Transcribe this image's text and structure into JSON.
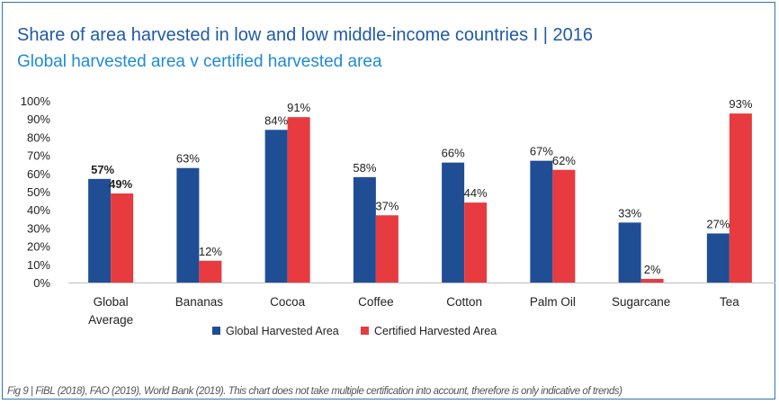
{
  "title": "Share of area harvested in low and low middle-income countries I  | 2016",
  "subtitle": "Global harvested area v certified harvested area",
  "caption": "Fig 9 | FiBL (2018), FAO (2019), World Bank (2019). This chart does not take multiple certification into account, therefore is only indicative of trends)",
  "colors": {
    "title": "#1f5aa6",
    "subtitle": "#1f8ad6",
    "global": "#1f4e95",
    "certified": "#e83b3f",
    "frame": "#2e75b6"
  },
  "chart_data": {
    "type": "bar",
    "categories": [
      [
        "Global",
        "Average"
      ],
      [
        "Bananas"
      ],
      [
        "Cocoa"
      ],
      [
        "Coffee"
      ],
      [
        "Cotton"
      ],
      [
        "Palm Oil"
      ],
      [
        "Sugarcane"
      ],
      [
        "Tea"
      ]
    ],
    "series": [
      {
        "name": "Global Harvested Area",
        "color": "#1f4e95",
        "values": [
          57,
          63,
          84,
          58,
          66,
          67,
          33,
          27
        ],
        "labels": [
          "57%",
          "63%",
          "84%",
          "58%",
          "66%",
          "67%",
          "33%",
          "27%"
        ]
      },
      {
        "name": "Certified Harvested Area",
        "color": "#e83b3f",
        "values": [
          49,
          12,
          91,
          37,
          44,
          62,
          2,
          93
        ],
        "labels": [
          "49%",
          "12%",
          "91%",
          "37%",
          "44%",
          "62%",
          "2%",
          "93%"
        ]
      }
    ],
    "bold_category_index": 0,
    "yticks": [
      "0%",
      "10%",
      "20%",
      "30%",
      "40%",
      "50%",
      "60%",
      "70%",
      "80%",
      "90%",
      "100%"
    ],
    "ylim": [
      0,
      100
    ],
    "grid": false,
    "legend": "bottom"
  }
}
